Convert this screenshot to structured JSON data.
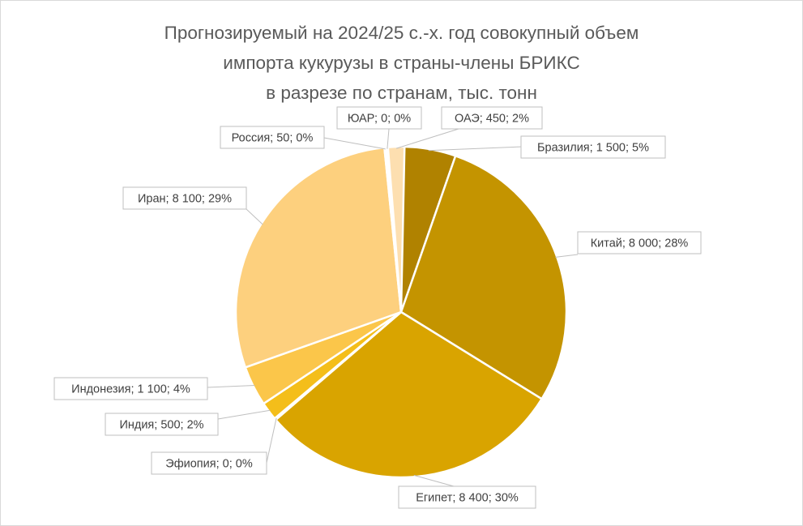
{
  "chart_data": {
    "type": "pie",
    "title_lines": [
      "Прогнозируемый на 2024/25 с.-х. год совокупный объем",
      "импорта кукурузы в страны-члены БРИКС",
      "в разрезе по странам, тыс. тонн"
    ],
    "slices": [
      {
        "name": "Бразилия",
        "value": 1500,
        "percent": 5,
        "label": "Бразилия; 1 500; 5%",
        "color": "#B08200"
      },
      {
        "name": "Китай",
        "value": 8000,
        "percent": 28,
        "label": "Китай; 8 000; 28%",
        "color": "#C49400"
      },
      {
        "name": "Египет",
        "value": 8400,
        "percent": 30,
        "label": "Египет; 8 400; 30%",
        "color": "#D9A400"
      },
      {
        "name": "Эфиопия",
        "value": 0,
        "percent": 0,
        "label": "Эфиопия; 0; 0%",
        "color": "#E0AE10"
      },
      {
        "name": "Индия",
        "value": 500,
        "percent": 2,
        "label": "Индия; 500; 2%",
        "color": "#F4BE1A"
      },
      {
        "name": "Индонезия",
        "value": 1100,
        "percent": 4,
        "label": "Индонезия; 1 100; 4%",
        "color": "#FBC64A"
      },
      {
        "name": "Иран",
        "value": 8100,
        "percent": 29,
        "label": "Иран; 8 100; 29%",
        "color": "#FDD07E"
      },
      {
        "name": "Россия",
        "value": 50,
        "percent": 0,
        "label": "Россия; 50; 0%",
        "color": "#FEE3B6"
      },
      {
        "name": "ЮАР",
        "value": 0,
        "percent": 0,
        "label": "ЮАР; 0; 0%",
        "color": "#FEEBCB"
      },
      {
        "name": "ОАЭ",
        "value": 450,
        "percent": 2,
        "label": "ОАЭ; 450; 2%",
        "color": "#FDDFB0"
      }
    ]
  }
}
